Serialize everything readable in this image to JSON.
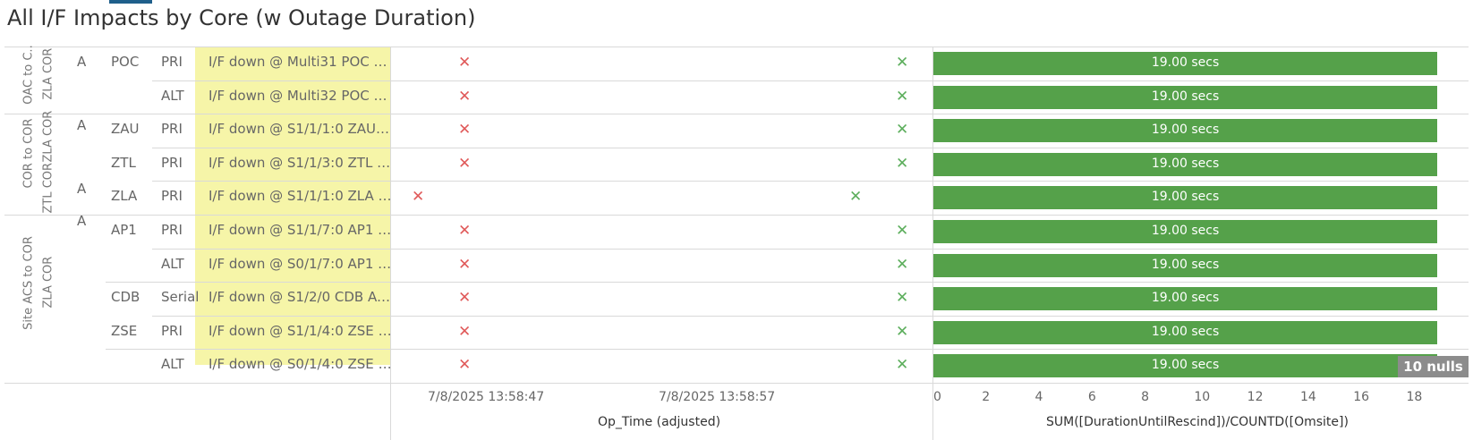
{
  "title": "All I/F Impacts by Core (w Outage Duration)",
  "colors": {
    "bar": "#55a14a",
    "x_red": "#e05a5a",
    "x_green": "#5cae5c",
    "highlight": "#f6f5a8"
  },
  "groups": [
    {
      "category": "OAC to C..",
      "site": "ZLA COR",
      "tier": "A"
    },
    {
      "category": "COR to COR",
      "site": "ZLA COR",
      "tier": "A"
    },
    {
      "category": "COR to COR",
      "site": "ZTL COR",
      "tier": "A"
    },
    {
      "category": "Site ACS to COR",
      "site": "ZLA COR",
      "tier": "A"
    }
  ],
  "rows": [
    {
      "node": "POC",
      "path": "PRI",
      "desc": "I/F down @ Multi31 POC O..",
      "duration_label": "19.00 secs"
    },
    {
      "node": "",
      "path": "ALT",
      "desc": "I/F down @ Multi32 POC O..",
      "duration_label": "19.00 secs"
    },
    {
      "node": "ZAU",
      "path": "PRI",
      "desc": "I/F down @ S1/1/1:0 ZAU C..",
      "duration_label": "19.00 secs"
    },
    {
      "node": "ZTL",
      "path": "PRI",
      "desc": "I/F down @ S1/1/3:0 ZTL CO..",
      "duration_label": "19.00 secs"
    },
    {
      "node": "ZLA",
      "path": "PRI",
      "desc": "I/F down @ S1/1/1:0 ZLA C..",
      "duration_label": "19.00 secs"
    },
    {
      "node": "AP1",
      "path": "PRI",
      "desc": "I/F down @ S1/1/7:0 AP1 A..",
      "duration_label": "19.00 secs"
    },
    {
      "node": "",
      "path": "ALT",
      "desc": "I/F down @ S0/1/7:0 AP1 A..",
      "duration_label": "19.00 secs"
    },
    {
      "node": "CDB",
      "path": "Serial",
      "desc": "I/F down @ S1/2/0 CDB ACS..",
      "duration_label": "19.00 secs"
    },
    {
      "node": "ZSE",
      "path": "PRI",
      "desc": "I/F down @ S1/1/4:0 ZSE A..",
      "duration_label": "19.00 secs"
    },
    {
      "node": "",
      "path": "ALT",
      "desc": "I/F down @ S0/1/4:0 ZSE A..",
      "duration_label": "19.00 secs"
    }
  ],
  "time_axis": {
    "title": "Op_Time (adjusted)",
    "ticks": [
      "7/8/2025 13:58:47",
      "7/8/2025 13:58:57"
    ]
  },
  "bar_axis": {
    "title": "SUM([DurationUntilRescind])/COUNTD([Omsite])",
    "ticks": [
      "0",
      "2",
      "4",
      "6",
      "8",
      "10",
      "12",
      "14",
      "16",
      "18"
    ]
  },
  "nulls_badge": "10 nulls",
  "chart_data": {
    "type": "bar",
    "categories": [
      "I/F down @ Multi31 POC O..",
      "I/F down @ Multi32 POC O..",
      "I/F down @ S1/1/1:0 ZAU C..",
      "I/F down @ S1/1/3:0 ZTL CO..",
      "I/F down @ S1/1/1:0 ZLA C..",
      "I/F down @ S1/1/7:0 AP1 A..",
      "I/F down @ S0/1/7:0 AP1 A..",
      "I/F down @ S1/2/0 CDB ACS..",
      "I/F down @ S1/1/4:0 ZSE A..",
      "I/F down @ S0/1/4:0 ZSE A.."
    ],
    "values": [
      19,
      19,
      19,
      19,
      19,
      19,
      19,
      19,
      19,
      19
    ],
    "xlim": [
      0,
      19.4
    ],
    "xlabel": "SUM([DurationUntilRescind])/COUNTD([Omsite])",
    "data_labels": [
      "19.00 secs",
      "19.00 secs",
      "19.00 secs",
      "19.00 secs",
      "19.00 secs",
      "19.00 secs",
      "19.00 secs",
      "19.00 secs",
      "19.00 secs",
      "19.00 secs"
    ],
    "time_marks": {
      "axis_label": "Op_Time (adjusted)",
      "start_markers": [
        "7/8/2025 13:58:47",
        "7/8/2025 13:58:47",
        "7/8/2025 13:58:47",
        "7/8/2025 13:58:47",
        "7/8/2025 13:58:44",
        "7/8/2025 13:58:47",
        "7/8/2025 13:58:47",
        "7/8/2025 13:58:47",
        "7/8/2025 13:58:47",
        "7/8/2025 13:58:47"
      ],
      "end_markers": [
        "7/8/2025 13:59:06",
        "7/8/2025 13:59:06",
        "7/8/2025 13:59:06",
        "7/8/2025 13:59:06",
        "7/8/2025 13:59:03",
        "7/8/2025 13:59:06",
        "7/8/2025 13:59:06",
        "7/8/2025 13:59:06",
        "7/8/2025 13:59:06",
        "7/8/2025 13:59:06"
      ]
    }
  }
}
